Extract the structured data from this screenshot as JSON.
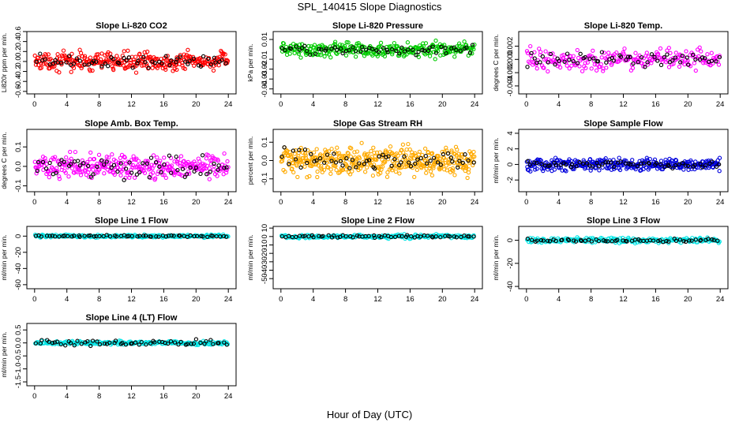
{
  "figure": {
    "title": "SPL_140415  Slope Diagnostics",
    "xlabel": "Hour of Day (UTC)"
  },
  "chart_data": [
    {
      "type": "scatter",
      "title": "Slope Li-820 CO2",
      "ylabel": "Li820r ppm per min.",
      "xlim": [
        0,
        24
      ],
      "ylim": [
        -0.65,
        0.6
      ],
      "xticks": [
        0,
        4,
        8,
        12,
        16,
        20,
        24
      ],
      "yticks": [
        -0.6,
        -0.4,
        -0.2,
        0.0,
        0.2,
        0.4,
        0.6
      ],
      "ytick_labels": [
        "-0.6",
        "-0.4",
        "-0.2",
        "0.0",
        "0.2",
        "0.4",
        "0.6"
      ],
      "series": [
        {
          "color": "#ff0000",
          "spread": 0.12,
          "n": 320
        },
        {
          "color": "#000000",
          "spread": 0.1,
          "n": 60
        }
      ]
    },
    {
      "type": "scatter",
      "title": "Slope Li-820 Pressure",
      "ylabel": "kPa per min.",
      "xlim": [
        0,
        24
      ],
      "ylim": [
        -0.045,
        0.018
      ],
      "xticks": [
        0,
        4,
        8,
        12,
        16,
        20,
        24
      ],
      "yticks": [
        -0.04,
        -0.03,
        -0.02,
        -0.01,
        0.01
      ],
      "ytick_labels": [
        "-0.04",
        "-0.03",
        "-0.02",
        "-0.01",
        "0.01"
      ],
      "series": [
        {
          "color": "#00cc00",
          "spread": 0.005,
          "n": 320
        },
        {
          "color": "#000000",
          "spread": 0.004,
          "n": 60
        }
      ]
    },
    {
      "type": "scatter",
      "title": "Slope Li-820 Temp.",
      "ylabel": "degrees C per min.",
      "xlim": [
        0,
        24
      ],
      "ylim": [
        -0.0052,
        0.0042
      ],
      "xticks": [
        0,
        4,
        8,
        12,
        16,
        20,
        24
      ],
      "yticks": [
        -0.004,
        -0.002,
        0.0,
        0.002
      ],
      "ytick_labels": [
        "-0.004",
        "-0.002",
        "0.000",
        "0.002"
      ],
      "series": [
        {
          "color": "#ff00ff",
          "spread": 0.0011,
          "n": 220
        },
        {
          "color": "#000000",
          "spread": 0.0007,
          "n": 60
        }
      ]
    },
    {
      "type": "scatter",
      "title": "Slope Amb. Box Temp.",
      "ylabel": "degrees C per min.",
      "xlim": [
        0,
        24
      ],
      "ylim": [
        -0.13,
        0.19
      ],
      "xticks": [
        0,
        4,
        8,
        12,
        16,
        20,
        24
      ],
      "yticks": [
        -0.1,
        0.0,
        0.1
      ],
      "ytick_labels": [
        "-0.1",
        "0.0",
        "0.1"
      ],
      "series": [
        {
          "color": "#ff00ff",
          "spread": 0.045,
          "n": 320
        },
        {
          "color": "#000000",
          "spread": 0.04,
          "n": 60
        }
      ]
    },
    {
      "type": "scatter",
      "title": "Slope Gas Stream RH",
      "ylabel": "percent per min.",
      "xlim": [
        0,
        24
      ],
      "ylim": [
        -0.17,
        0.17
      ],
      "xticks": [
        0,
        4,
        8,
        12,
        16,
        20,
        24
      ],
      "yticks": [
        -0.1,
        0.0,
        0.1
      ],
      "ytick_labels": [
        "-0.1",
        "0.0",
        "0.1"
      ],
      "series": [
        {
          "color": "#ffaa00",
          "spread": 0.055,
          "n": 420
        },
        {
          "color": "#000000",
          "spread": 0.04,
          "n": 60
        }
      ]
    },
    {
      "type": "scatter",
      "title": "Slope Sample Flow",
      "ylabel": "ml/min per min.",
      "xlim": [
        0,
        24
      ],
      "ylim": [
        -3.5,
        4.5
      ],
      "xticks": [
        0,
        4,
        8,
        12,
        16,
        20,
        24
      ],
      "yticks": [
        -2,
        0,
        2,
        4
      ],
      "ytick_labels": [
        "-2",
        "0",
        "2",
        "4"
      ],
      "series": [
        {
          "color": "#0000dd",
          "spread": 0.5,
          "n": 320
        },
        {
          "color": "#000000",
          "spread": 0.3,
          "n": 60
        }
      ]
    },
    {
      "type": "scatter",
      "title": "Slope Line 1 Flow",
      "ylabel": "ml/min per min.",
      "xlim": [
        0,
        24
      ],
      "ylim": [
        -65,
        12
      ],
      "xticks": [
        0,
        4,
        8,
        12,
        16,
        20,
        24
      ],
      "yticks": [
        -60,
        -40,
        -20,
        0
      ],
      "ytick_labels": [
        "-60",
        "-40",
        "-20",
        "0"
      ],
      "series": [
        {
          "color": "#00e5e5",
          "spread": 1.2,
          "n": 220
        },
        {
          "color": "#000000",
          "spread": 0.8,
          "n": 60
        }
      ]
    },
    {
      "type": "scatter",
      "title": "Slope Line 2 Flow",
      "ylabel": "ml/min per min.",
      "xlim": [
        0,
        24
      ],
      "ylim": [
        -62,
        12
      ],
      "xticks": [
        0,
        4,
        8,
        12,
        16,
        20,
        24
      ],
      "yticks": [
        -50,
        -40,
        -30,
        -20,
        -10,
        0,
        10
      ],
      "ytick_labels": [
        "-50",
        "-40",
        "-30",
        "-20",
        "-10",
        "0",
        "10"
      ],
      "series": [
        {
          "color": "#00e5e5",
          "spread": 1.5,
          "n": 220
        },
        {
          "color": "#000000",
          "spread": 1.0,
          "n": 60
        }
      ]
    },
    {
      "type": "scatter",
      "title": "Slope Line 3 Flow",
      "ylabel": "ml/min per min.",
      "xlim": [
        0,
        24
      ],
      "ylim": [
        -42,
        12
      ],
      "xticks": [
        0,
        4,
        8,
        12,
        16,
        20,
        24
      ],
      "yticks": [
        -40,
        -20,
        0
      ],
      "ytick_labels": [
        "-40",
        "-20",
        "0"
      ],
      "series": [
        {
          "color": "#00e5e5",
          "spread": 1.5,
          "n": 220
        },
        {
          "color": "#000000",
          "spread": 1.0,
          "n": 60
        }
      ]
    },
    {
      "type": "scatter",
      "title": "Slope Line 4 (LT) Flow",
      "ylabel": "ml/min per min.",
      "xlim": [
        0,
        24
      ],
      "ylim": [
        -1.65,
        0.75
      ],
      "xticks": [
        0,
        4,
        8,
        12,
        16,
        20,
        24
      ],
      "yticks": [
        -1.5,
        -1.0,
        -0.5,
        0.0,
        0.5
      ],
      "ytick_labels": [
        "-1.5",
        "-1.0",
        "-0.5",
        "0.0",
        "0.5"
      ],
      "series": [
        {
          "color": "#00e5e5",
          "spread": 0.05,
          "n": 220
        },
        {
          "color": "#000000",
          "spread": 0.08,
          "n": 60
        }
      ]
    }
  ]
}
